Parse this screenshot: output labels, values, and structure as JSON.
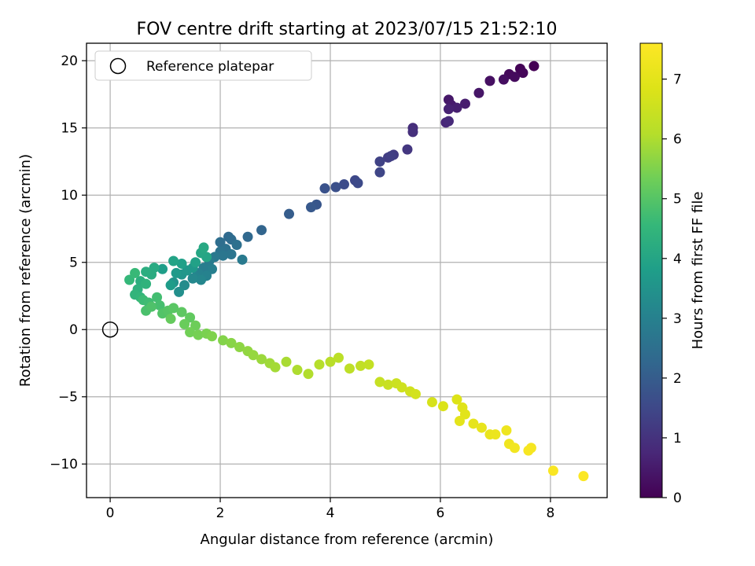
{
  "chart_data": {
    "type": "scatter",
    "title": "FOV centre drift starting at 2023/07/15 21:52:10",
    "xlabel": "Angular distance from reference (arcmin)",
    "ylabel": "Rotation from reference (arcmin)",
    "xlim": [
      -0.43,
      9.03
    ],
    "ylim": [
      -12.5,
      21.3
    ],
    "xticks": [
      "0",
      "2",
      "4",
      "6",
      "8"
    ],
    "xtick_values": [
      0,
      2,
      4,
      6,
      8
    ],
    "yticks": [
      "−10",
      "−5",
      "0",
      "5",
      "10",
      "15",
      "20"
    ],
    "ytick_values": [
      -10,
      -5,
      0,
      5,
      10,
      15,
      20
    ],
    "grid": true,
    "legend": {
      "position": "top-left",
      "label": "Reference platepar"
    },
    "reference_point": {
      "x": 0,
      "y": 0
    },
    "colormap": "viridis",
    "colorbar": {
      "label": "Hours from first FF file",
      "range": [
        0,
        7.6
      ],
      "ticks": [
        "0",
        "1",
        "2",
        "3",
        "4",
        "5",
        "6",
        "7"
      ],
      "tick_values": [
        0,
        1,
        2,
        3,
        4,
        5,
        6,
        7
      ]
    },
    "points": [
      [
        7.7,
        19.6,
        0.0
      ],
      [
        7.45,
        19.4,
        0.05
      ],
      [
        7.5,
        19.1,
        0.1
      ],
      [
        7.25,
        19.0,
        0.15
      ],
      [
        7.35,
        18.8,
        0.2
      ],
      [
        7.15,
        18.6,
        0.25
      ],
      [
        6.9,
        18.5,
        0.3
      ],
      [
        6.7,
        17.6,
        0.4
      ],
      [
        6.15,
        17.1,
        0.45
      ],
      [
        6.2,
        16.7,
        0.5
      ],
      [
        6.45,
        16.8,
        0.55
      ],
      [
        6.3,
        16.5,
        0.6
      ],
      [
        6.15,
        16.4,
        0.65
      ],
      [
        6.1,
        15.4,
        0.75
      ],
      [
        6.15,
        15.5,
        0.8
      ],
      [
        5.5,
        15.0,
        0.9
      ],
      [
        5.5,
        14.7,
        0.95
      ],
      [
        5.4,
        13.4,
        1.1
      ],
      [
        5.15,
        13.0,
        1.2
      ],
      [
        5.05,
        12.8,
        1.25
      ],
      [
        5.1,
        12.9,
        1.3
      ],
      [
        4.9,
        12.5,
        1.35
      ],
      [
        4.9,
        11.7,
        1.45
      ],
      [
        4.45,
        11.1,
        1.5
      ],
      [
        4.5,
        10.9,
        1.55
      ],
      [
        4.25,
        10.8,
        1.6
      ],
      [
        4.1,
        10.6,
        1.7
      ],
      [
        3.9,
        10.5,
        1.75
      ],
      [
        3.75,
        9.3,
        1.85
      ],
      [
        3.65,
        9.1,
        1.9
      ],
      [
        3.25,
        8.6,
        2.0
      ],
      [
        2.75,
        7.4,
        2.2
      ],
      [
        2.5,
        6.9,
        2.3
      ],
      [
        2.15,
        6.9,
        2.35
      ],
      [
        2.2,
        6.7,
        2.4
      ],
      [
        2.0,
        6.5,
        2.45
      ],
      [
        2.3,
        6.3,
        2.5
      ],
      [
        2.1,
        6.0,
        2.55
      ],
      [
        2.0,
        5.8,
        2.6
      ],
      [
        2.2,
        5.6,
        2.65
      ],
      [
        2.05,
        5.5,
        2.7
      ],
      [
        1.9,
        5.4,
        2.75
      ],
      [
        2.4,
        5.2,
        2.8
      ],
      [
        1.8,
        5.1,
        2.85
      ],
      [
        1.7,
        4.6,
        2.9
      ],
      [
        1.85,
        4.5,
        2.95
      ],
      [
        1.6,
        4.2,
        3.0
      ],
      [
        1.75,
        4.0,
        3.05
      ],
      [
        1.55,
        3.9,
        3.1
      ],
      [
        1.65,
        3.7,
        3.15
      ],
      [
        1.5,
        3.8,
        3.2
      ],
      [
        1.35,
        3.3,
        3.3
      ],
      [
        1.25,
        2.8,
        3.4
      ],
      [
        1.15,
        3.5,
        3.5
      ],
      [
        1.3,
        4.1,
        3.55
      ],
      [
        1.4,
        4.4,
        3.6
      ],
      [
        1.5,
        4.6,
        3.65
      ],
      [
        1.2,
        4.2,
        3.7
      ],
      [
        1.1,
        3.3,
        3.75
      ],
      [
        0.95,
        4.5,
        3.8
      ],
      [
        1.3,
        4.9,
        3.85
      ],
      [
        1.55,
        5.0,
        3.9
      ],
      [
        1.15,
        5.1,
        3.95
      ],
      [
        1.75,
        5.4,
        4.0
      ],
      [
        1.65,
        5.7,
        4.05
      ],
      [
        1.7,
        6.1,
        4.1
      ],
      [
        0.8,
        4.6,
        4.15
      ],
      [
        0.75,
        4.1,
        4.2
      ],
      [
        0.65,
        4.3,
        4.25
      ],
      [
        0.55,
        3.6,
        4.3
      ],
      [
        0.5,
        3.0,
        4.35
      ],
      [
        0.65,
        3.4,
        4.4
      ],
      [
        0.45,
        2.6,
        4.45
      ],
      [
        0.55,
        2.4,
        4.5
      ],
      [
        0.35,
        3.7,
        4.55
      ],
      [
        0.45,
        4.2,
        4.6
      ],
      [
        0.6,
        2.2,
        4.65
      ],
      [
        0.7,
        2.0,
        4.7
      ],
      [
        0.85,
        2.4,
        4.75
      ],
      [
        0.9,
        1.8,
        4.8
      ],
      [
        0.65,
        1.4,
        4.85
      ],
      [
        0.75,
        1.7,
        4.9
      ],
      [
        0.95,
        1.2,
        4.95
      ],
      [
        1.05,
        1.4,
        5.0
      ],
      [
        1.15,
        1.6,
        5.05
      ],
      [
        1.3,
        1.3,
        5.1
      ],
      [
        1.45,
        0.9,
        5.15
      ],
      [
        1.1,
        0.8,
        5.2
      ],
      [
        1.35,
        0.4,
        5.25
      ],
      [
        1.55,
        0.3,
        5.3
      ],
      [
        1.45,
        -0.2,
        5.35
      ],
      [
        1.6,
        -0.4,
        5.4
      ],
      [
        1.75,
        -0.3,
        5.45
      ],
      [
        1.85,
        -0.5,
        5.5
      ],
      [
        2.05,
        -0.8,
        5.55
      ],
      [
        2.2,
        -1.0,
        5.6
      ],
      [
        2.35,
        -1.3,
        5.65
      ],
      [
        2.5,
        -1.6,
        5.7
      ],
      [
        2.6,
        -1.9,
        5.75
      ],
      [
        2.75,
        -2.2,
        5.8
      ],
      [
        2.9,
        -2.5,
        5.85
      ],
      [
        3.0,
        -2.8,
        5.9
      ],
      [
        3.2,
        -2.4,
        5.95
      ],
      [
        3.4,
        -3.0,
        6.0
      ],
      [
        3.6,
        -3.3,
        6.05
      ],
      [
        3.8,
        -2.6,
        6.1
      ],
      [
        4.0,
        -2.4,
        6.15
      ],
      [
        4.15,
        -2.1,
        6.2
      ],
      [
        4.35,
        -2.9,
        6.25
      ],
      [
        4.55,
        -2.7,
        6.3
      ],
      [
        4.7,
        -2.6,
        6.35
      ],
      [
        4.9,
        -3.9,
        6.4
      ],
      [
        5.05,
        -4.1,
        6.45
      ],
      [
        5.2,
        -4.0,
        6.5
      ],
      [
        5.3,
        -4.3,
        6.55
      ],
      [
        5.45,
        -4.6,
        6.6
      ],
      [
        5.55,
        -4.8,
        6.65
      ],
      [
        5.85,
        -5.4,
        6.7
      ],
      [
        6.05,
        -5.7,
        6.8
      ],
      [
        6.3,
        -5.2,
        6.85
      ],
      [
        6.4,
        -5.8,
        6.9
      ],
      [
        6.45,
        -6.3,
        6.95
      ],
      [
        6.35,
        -6.8,
        7.0
      ],
      [
        6.6,
        -7.0,
        7.05
      ],
      [
        6.75,
        -7.3,
        7.1
      ],
      [
        6.9,
        -7.8,
        7.15
      ],
      [
        7.0,
        -7.8,
        7.2
      ],
      [
        7.2,
        -7.5,
        7.25
      ],
      [
        7.25,
        -8.5,
        7.3
      ],
      [
        7.35,
        -8.8,
        7.35
      ],
      [
        7.65,
        -8.8,
        7.4
      ],
      [
        7.6,
        -9.0,
        7.45
      ],
      [
        8.05,
        -10.5,
        7.5
      ],
      [
        8.6,
        -10.9,
        7.55
      ]
    ]
  }
}
